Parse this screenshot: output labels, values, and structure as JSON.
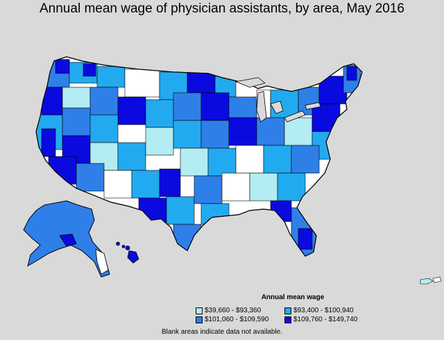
{
  "title": "Annual mean wage of physician assistants, by area, May 2016",
  "legend": {
    "title": "Annual mean wage",
    "items": [
      {
        "label": "$39,660 - $93,360",
        "color": "#b3ecf2"
      },
      {
        "label": "$93,400 - $100,940",
        "color": "#22aaf0"
      },
      {
        "label": "$101,060 - $109,590",
        "color": "#2e80e8"
      },
      {
        "label": "$109,760 - $149,740",
        "color": "#0a0ae0"
      }
    ]
  },
  "note": "Blank areas indicate data not available.",
  "colors": {
    "background": "#d9d9d9",
    "blank": "#ffffff",
    "border": "#000000"
  }
}
